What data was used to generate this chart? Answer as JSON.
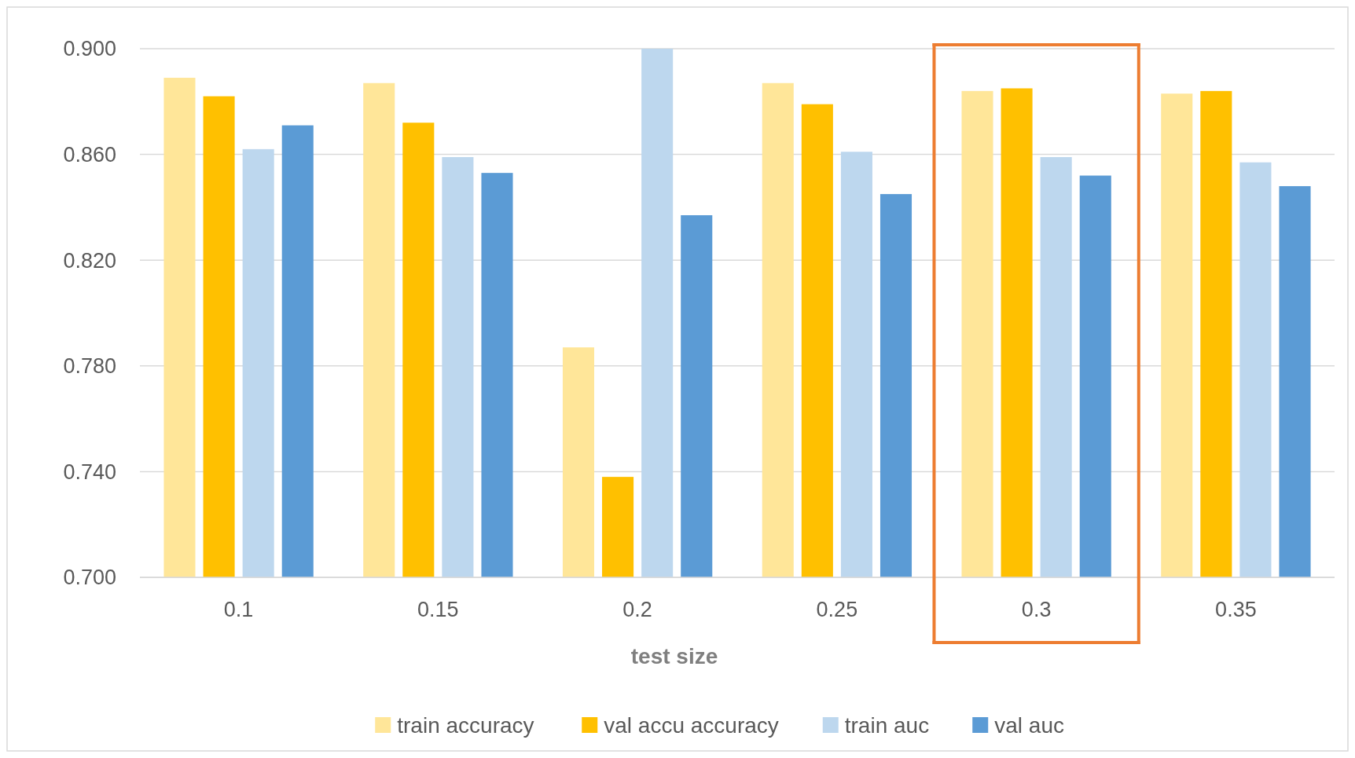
{
  "chart_data": {
    "type": "bar",
    "xlabel": "test size",
    "categories": [
      "0.1",
      "0.15",
      "0.2",
      "0.25",
      "0.3",
      "0.35"
    ],
    "series": [
      {
        "name": "train accuracy",
        "color": "#ffe699",
        "values": [
          0.889,
          0.887,
          0.787,
          0.887,
          0.884,
          0.883
        ]
      },
      {
        "name": "val accu accuracy",
        "color": "#ffc000",
        "values": [
          0.882,
          0.872,
          0.738,
          0.879,
          0.885,
          0.884
        ]
      },
      {
        "name": "train auc",
        "color": "#bdd7ee",
        "values": [
          0.862,
          0.859,
          0.9,
          0.861,
          0.859,
          0.857
        ]
      },
      {
        "name": "val auc",
        "color": "#5b9bd5",
        "values": [
          0.871,
          0.853,
          0.837,
          0.845,
          0.852,
          0.848
        ]
      }
    ],
    "ylim": [
      0.7,
      0.9
    ],
    "yticks": [
      {
        "value": 0.7,
        "label": "0.700"
      },
      {
        "value": 0.74,
        "label": "0.740"
      },
      {
        "value": 0.78,
        "label": "0.780"
      },
      {
        "value": 0.82,
        "label": "0.820"
      },
      {
        "value": 0.86,
        "label": "0.860"
      },
      {
        "value": 0.9,
        "label": "0.900"
      }
    ],
    "grid": "y",
    "legend": "bottom"
  }
}
